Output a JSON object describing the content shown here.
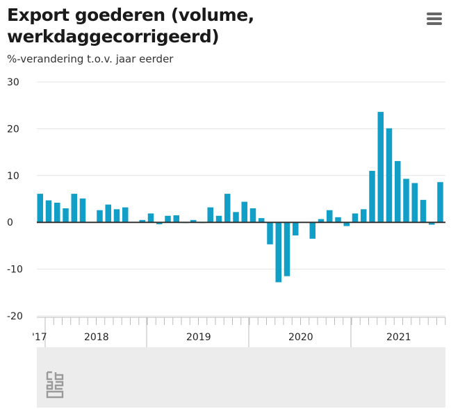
{
  "header": {
    "title_line1": "Export goederen (volume,",
    "title_line2": "werkdaggecorrigeerd)",
    "subtitle": "%-verandering t.o.v. jaar eerder",
    "menu_icon": "hamburger-menu-icon"
  },
  "colors": {
    "bar": "#119fc8",
    "grid": "#e3e3e3",
    "axis": "#333333"
  },
  "chart_data": {
    "type": "bar",
    "title": "Export goederen (volume, werkdaggecorrigeerd)",
    "subtitle": "%-verandering t.o.v. jaar eerder",
    "ylim": [
      -20,
      30
    ],
    "yticks": [
      30,
      20,
      10,
      0,
      -10,
      -20
    ],
    "grid": true,
    "year_labels": [
      "'17",
      "2018",
      "2019",
      "2020",
      "2021"
    ],
    "values": [
      6.1,
      4.7,
      4.2,
      3.0,
      6.1,
      5.1,
      0,
      2.6,
      3.8,
      2.8,
      3.2,
      0,
      0.5,
      1.9,
      -0.4,
      1.4,
      1.5,
      -0.1,
      0.5,
      -0.1,
      3.2,
      1.4,
      6.1,
      2.2,
      4.4,
      3.0,
      0.9,
      -4.7,
      -12.8,
      -11.5,
      -2.8,
      0,
      -3.5,
      0.7,
      2.6,
      1.1,
      -0.8,
      1.9,
      2.8,
      11.0,
      23.6,
      20.1,
      13.1,
      9.3,
      8.4,
      4.8,
      -0.5,
      8.6
    ]
  },
  "logo": "cbs-logo"
}
